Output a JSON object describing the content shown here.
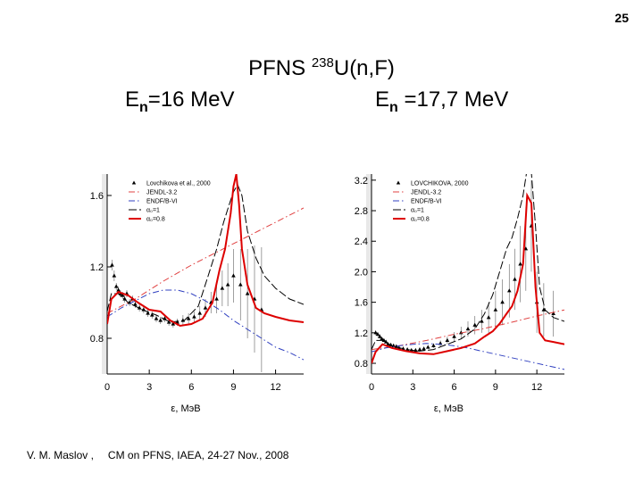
{
  "slide": {
    "number": "25",
    "title_prefix": "PFNS ",
    "title_sup": "238",
    "title_suffix": "U(n,F)",
    "energy_left": {
      "E": "E",
      "sub": "n",
      "rest": "=16 MeV"
    },
    "energy_right": {
      "E": "E",
      "sub": "n",
      "rest": " =17,7 MeV"
    },
    "footer_author": "V. M. Maslov ,",
    "footer_event": "CM on PFNS, IAEA, 24-27 Nov., 2008"
  },
  "colors": {
    "jendl": "#e04040",
    "endf": "#3040c0",
    "alpha1": "#000000",
    "alpha08": "#dd0000",
    "exp": "#000000"
  },
  "chart_data": [
    {
      "type": "line",
      "xlabel": "ε, MэB",
      "ylabel": "",
      "xlim": [
        0,
        14
      ],
      "ylim": [
        0.6,
        1.72
      ],
      "xticks": [
        0,
        3,
        6,
        9,
        12
      ],
      "yticks": [
        0.8,
        1.2,
        1.6
      ],
      "yticklabels": [
        "0.8",
        "1.2",
        "1.6"
      ],
      "legend_position": "top-left",
      "legend": [
        "Lovchikova et al., 2000",
        "JENDL-3.2",
        "ENDF/B-VI",
        "α₀=1",
        "α₀=0.8"
      ],
      "series": [
        {
          "name": "JENDL-3.2",
          "style": "dashdot",
          "color": "#e04040",
          "x": [
            0,
            2,
            4,
            6,
            8,
            10,
            12,
            14
          ],
          "y": [
            0.94,
            1.02,
            1.12,
            1.21,
            1.29,
            1.37,
            1.45,
            1.53
          ]
        },
        {
          "name": "ENDF/B-VI",
          "style": "dashdot",
          "color": "#3040c0",
          "x": [
            0,
            1,
            2,
            3,
            4,
            5,
            6,
            7,
            8,
            9,
            10,
            11,
            12,
            13,
            14
          ],
          "y": [
            0.92,
            0.97,
            1.01,
            1.05,
            1.07,
            1.07,
            1.05,
            1.01,
            0.96,
            0.9,
            0.85,
            0.8,
            0.75,
            0.72,
            0.68
          ]
        },
        {
          "name": "α₀=1",
          "style": "dashed",
          "color": "#000000",
          "x": [
            0,
            0.3,
            0.8,
            1.5,
            2.5,
            3.5,
            4.5,
            5.5,
            6.5,
            7.2,
            7.8,
            8.3,
            8.7,
            9.0,
            9.3,
            9.6,
            10.0,
            10.6,
            11.2,
            12,
            13,
            14
          ],
          "y": [
            0.95,
            1.05,
            1.05,
            1.0,
            0.96,
            0.93,
            0.89,
            0.9,
            0.98,
            1.15,
            1.3,
            1.45,
            1.55,
            1.62,
            1.66,
            1.6,
            1.4,
            1.25,
            1.15,
            1.08,
            1.02,
            0.99
          ]
        },
        {
          "name": "α₀=0.8",
          "style": "solid",
          "color": "#dd0000",
          "x": [
            0,
            0.3,
            0.8,
            1.5,
            2.2,
            3.0,
            3.8,
            4.5,
            5.2,
            6.0,
            6.8,
            7.5,
            8.0,
            8.4,
            8.8,
            9.0,
            9.2,
            9.4,
            9.6,
            10.0,
            10.6,
            11.2,
            12,
            13,
            14
          ],
          "y": [
            0.88,
            1.02,
            1.06,
            1.04,
            1.0,
            0.96,
            0.95,
            0.9,
            0.87,
            0.88,
            0.91,
            1.0,
            1.18,
            1.3,
            1.5,
            1.65,
            1.72,
            1.55,
            1.3,
            1.1,
            0.97,
            0.94,
            0.92,
            0.9,
            0.89
          ]
        }
      ],
      "points": {
        "name": "Lovchikova et al., 2000",
        "x": [
          0.35,
          0.5,
          0.65,
          0.8,
          0.95,
          1.1,
          1.25,
          1.4,
          1.6,
          1.8,
          2.0,
          2.3,
          2.6,
          2.9,
          3.2,
          3.5,
          3.8,
          4.1,
          4.4,
          4.7,
          5.0,
          5.4,
          5.8,
          6.2,
          6.6,
          7.0,
          7.4,
          7.8,
          8.2,
          8.6,
          9.0,
          9.5,
          10.0,
          10.5,
          11.0
        ],
        "y": [
          1.21,
          1.15,
          1.09,
          1.07,
          1.05,
          1.04,
          1.02,
          1.05,
          1.0,
          1.02,
          0.99,
          0.97,
          0.96,
          0.94,
          0.93,
          0.91,
          0.9,
          0.91,
          0.89,
          0.88,
          0.89,
          0.9,
          0.91,
          0.92,
          0.94,
          0.97,
          1.0,
          1.02,
          1.08,
          1.1,
          1.15,
          1.1,
          1.05,
          1.02,
          0.96
        ],
        "err": [
          0.03,
          0.03,
          0.02,
          0.02,
          0.02,
          0.02,
          0.02,
          0.02,
          0.02,
          0.02,
          0.02,
          0.02,
          0.02,
          0.02,
          0.02,
          0.02,
          0.02,
          0.02,
          0.02,
          0.02,
          0.02,
          0.03,
          0.03,
          0.03,
          0.04,
          0.05,
          0.06,
          0.08,
          0.1,
          0.12,
          0.15,
          0.2,
          0.25,
          0.3,
          0.35
        ]
      }
    },
    {
      "type": "line",
      "xlabel": "ε, MэB",
      "ylabel": "",
      "xlim": [
        0,
        14
      ],
      "ylim": [
        0.66,
        3.28
      ],
      "xticks": [
        0,
        3,
        6,
        9,
        12
      ],
      "yticks": [
        0.8,
        1.2,
        1.6,
        2.0,
        2.4,
        2.8,
        3.2
      ],
      "yticklabels": [
        "0.8",
        "1.2",
        "1.6",
        "2.0",
        "2.4",
        "2.8",
        "3.2"
      ],
      "legend_position": "top-left",
      "legend": [
        "LOVCHIKOVA, 2000",
        "JENDL-3.2",
        "ENDF/B-VI",
        "α₀=1",
        "α₀=0.8"
      ],
      "series": [
        {
          "name": "JENDL-3.2",
          "style": "dashdot",
          "color": "#e04040",
          "x": [
            0,
            2,
            4,
            6,
            8,
            10,
            12,
            14
          ],
          "y": [
            0.98,
            1.03,
            1.1,
            1.18,
            1.25,
            1.33,
            1.42,
            1.5
          ]
        },
        {
          "name": "ENDF/B-VI",
          "style": "dashdot",
          "color": "#3040c0",
          "x": [
            0,
            1,
            2,
            3,
            4,
            5,
            6,
            7,
            8,
            9,
            10,
            11,
            12,
            13,
            14
          ],
          "y": [
            0.95,
            1.0,
            1.03,
            1.05,
            1.06,
            1.05,
            1.03,
            1.0,
            0.96,
            0.92,
            0.88,
            0.84,
            0.8,
            0.76,
            0.72
          ]
        },
        {
          "name": "α₀=1",
          "style": "dashed",
          "color": "#000000",
          "x": [
            0,
            0.3,
            0.8,
            1.5,
            2.5,
            3.5,
            4.5,
            5.5,
            6.5,
            7.5,
            8.2,
            8.8,
            9.3,
            9.8,
            10.2,
            10.6,
            11.0,
            11.3,
            11.6,
            11.9,
            12.2,
            12.6,
            13.2,
            14
          ],
          "y": [
            0.98,
            1.1,
            1.1,
            1.03,
            0.98,
            0.96,
            0.98,
            1.05,
            1.12,
            1.25,
            1.45,
            1.7,
            2.0,
            2.3,
            2.45,
            2.7,
            3.0,
            3.35,
            3.3,
            2.6,
            1.8,
            1.5,
            1.4,
            1.35
          ]
        },
        {
          "name": "α₀=0.8",
          "style": "solid",
          "color": "#dd0000",
          "x": [
            0,
            0.3,
            0.8,
            1.5,
            2.5,
            3.5,
            4.5,
            5.5,
            6.5,
            7.5,
            8.2,
            8.8,
            9.3,
            9.8,
            10.2,
            10.6,
            11.0,
            11.3,
            11.6,
            11.9,
            12.2,
            12.6,
            13.2,
            14
          ],
          "y": [
            0.8,
            0.95,
            1.05,
            1.0,
            0.96,
            0.93,
            0.92,
            0.96,
            1.0,
            1.06,
            1.15,
            1.22,
            1.32,
            1.45,
            1.55,
            1.75,
            2.1,
            3.0,
            2.9,
            1.8,
            1.2,
            1.1,
            1.08,
            1.05
          ]
        }
      ],
      "points": {
        "name": "LOVCHIKOVA, 2000",
        "x": [
          0.3,
          0.45,
          0.6,
          0.75,
          0.9,
          1.05,
          1.2,
          1.4,
          1.6,
          1.8,
          2.0,
          2.3,
          2.6,
          2.9,
          3.2,
          3.5,
          3.8,
          4.1,
          4.5,
          5.0,
          5.5,
          6.0,
          6.5,
          7.0,
          7.5,
          8.0,
          8.5,
          9.0,
          9.5,
          10.0,
          10.4,
          10.8,
          11.2,
          11.6,
          12.0,
          12.5,
          13.2
        ],
        "y": [
          1.2,
          1.18,
          1.15,
          1.12,
          1.1,
          1.08,
          1.05,
          1.04,
          1.03,
          1.02,
          1.0,
          0.99,
          0.98,
          0.97,
          0.97,
          0.98,
          0.99,
          1.01,
          1.03,
          1.06,
          1.1,
          1.15,
          1.2,
          1.25,
          1.3,
          1.35,
          1.4,
          1.5,
          1.6,
          1.75,
          1.9,
          2.1,
          2.3,
          2.6,
          1.6,
          1.5,
          1.45
        ],
        "err": [
          0.03,
          0.03,
          0.03,
          0.02,
          0.02,
          0.02,
          0.02,
          0.02,
          0.02,
          0.02,
          0.02,
          0.02,
          0.02,
          0.02,
          0.02,
          0.02,
          0.02,
          0.02,
          0.03,
          0.04,
          0.05,
          0.06,
          0.08,
          0.1,
          0.12,
          0.15,
          0.2,
          0.25,
          0.3,
          0.35,
          0.4,
          0.5,
          0.55,
          0.6,
          0.4,
          0.35,
          0.3
        ]
      }
    }
  ]
}
